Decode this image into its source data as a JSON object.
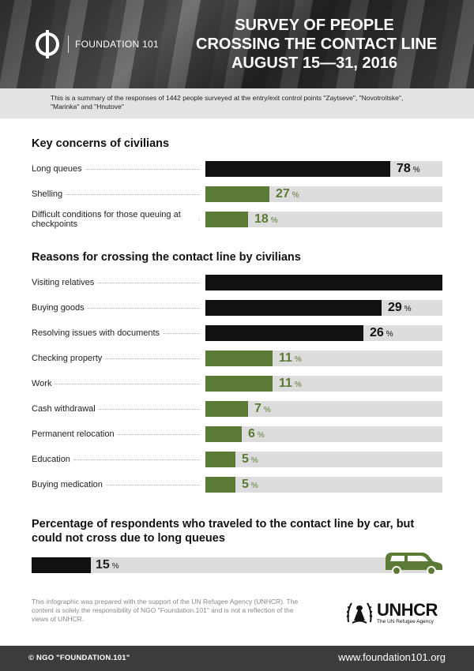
{
  "header": {
    "logo_text": "FOUNDATION 101",
    "title_lines": [
      "SURVEY OF PEOPLE",
      "CROSSING THE CONTACT LINE",
      "AUGUST 15—31, 2016"
    ]
  },
  "summary": "This is a summary of the responses of 1442 people surveyed at the entry/exit control points \"Zaytseve\", \"Novotroitske\", \"Marinka\" and \"Hnutove\"",
  "colors": {
    "black": "#111111",
    "green": "#5a7a35",
    "track": "#dcdcdc"
  },
  "chart_data": [
    {
      "type": "bar",
      "title": "Key concerns of civilians",
      "categories": [
        "Long queues",
        "Shelling",
        "Difficult conditions for those queuing at checkpoints"
      ],
      "values": [
        78,
        27,
        18
      ],
      "unit": "%",
      "ylim": [
        0,
        100
      ],
      "bar_colors": [
        "#111111",
        "#5a7a35",
        "#5a7a35"
      ]
    },
    {
      "type": "bar",
      "title": "Reasons for crossing the contact line by civilians",
      "categories": [
        "Visiting relatives",
        "Buying goods",
        "Resolving issues with documents",
        "Checking property",
        "Work",
        "Cash withdrawal",
        "Permanent relocation",
        "Education",
        "Buying medication"
      ],
      "values": [
        39,
        29,
        26,
        11,
        11,
        7,
        6,
        5,
        5
      ],
      "unit": "%",
      "ylim": [
        0,
        39
      ],
      "bar_colors": [
        "#111111",
        "#111111",
        "#111111",
        "#5a7a35",
        "#5a7a35",
        "#5a7a35",
        "#5a7a35",
        "#5a7a35",
        "#5a7a35"
      ]
    },
    {
      "type": "bar",
      "title": "Percentage of respondents who traveled to the contact line by car, but could not cross due to long queues",
      "values": [
        15
      ],
      "unit": "%",
      "ylim": [
        0,
        100
      ],
      "bar_colors": [
        "#111111"
      ]
    }
  ],
  "footnote": "This infographic was prepared with the support of the UN Refugee Agency (UNHCR). The content is solely the responsibility of NGO \"Foundation.101\" and is not a reflection of the views of UNHCR.",
  "unhcr": {
    "name": "UNHCR",
    "sub": "The UN Refugee Agency"
  },
  "footer": {
    "copyright": "© NGO \"FOUNDATION.101\"",
    "website": "www.foundation101.org"
  },
  "icons": {
    "logo": "foundation-logo-icon",
    "car": "car-icon",
    "unhcr": "unhcr-emblem-icon"
  }
}
